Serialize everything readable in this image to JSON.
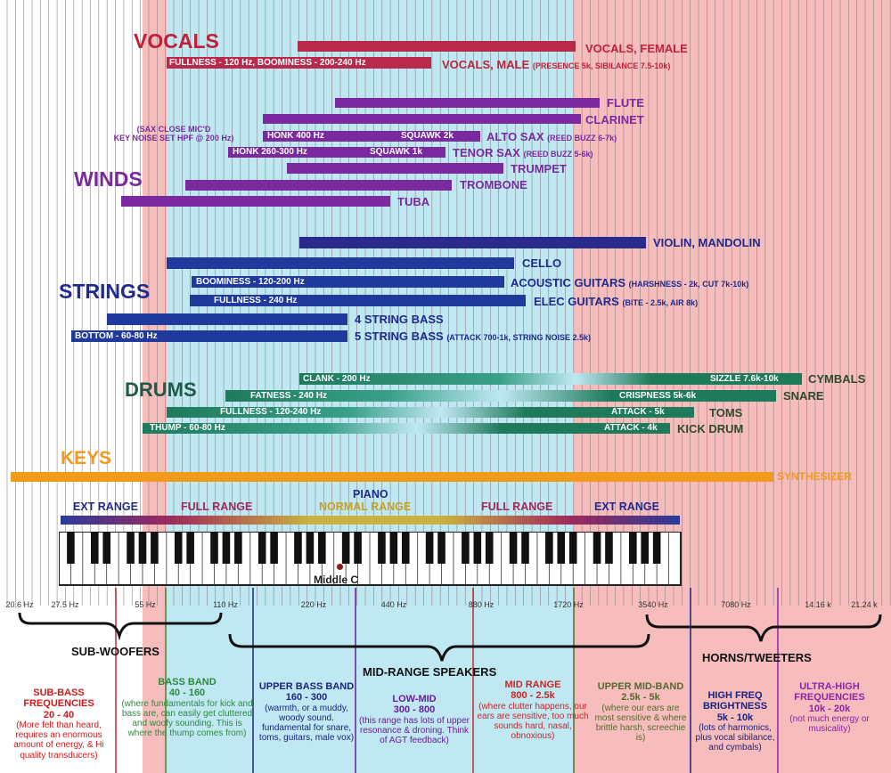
{
  "sections": {
    "vocals": "VOCALS",
    "winds": "WINDS",
    "strings": "STRINGS",
    "drums": "DRUMS",
    "keys": "KEYS"
  },
  "instruments": {
    "vocals_female": "VOCALS, FEMALE",
    "vocals_male": "VOCALS, MALE",
    "vocals_male_note": "(PRESENCE 5k, SIBILANCE 7.5-10k)",
    "vocals_male_bar": "FULLNESS - 120 Hz, BOOMINESS - 200-240 Hz",
    "flute": "FLUTE",
    "clarinet": "CLARINET",
    "sax_note_1": "(SAX CLOSE MIC'D",
    "sax_note_2": "KEY NOISE SET HPF @ 200 Hz)",
    "alto_sax_bar_1": "HONK 400 Hz",
    "alto_sax_bar_2": "SQUAWK  2k",
    "alto_sax": "ALTO SAX",
    "alto_sax_note": "(REED BUZZ 6-7k)",
    "tenor_sax_bar_1": "HONK 260-300 Hz",
    "tenor_sax_bar_2": "SQUAWK  1k",
    "tenor_sax": "TENOR SAX",
    "tenor_sax_note": "(REED BUZZ 5-6k)",
    "trumpet": "TRUMPET",
    "trombone": "TROMBONE",
    "tuba": "TUBA",
    "violin": "VIOLIN, MANDOLIN",
    "cello": "CELLO",
    "acoustic_bar": "BOOMINESS - 120-200 Hz",
    "acoustic": "ACOUSTIC GUITARS",
    "acoustic_note": "(HARSHNESS - 2k, CUT 7k-10k)",
    "elec_bar": "FULLNESS - 240 Hz",
    "elec": "ELEC GUITARS",
    "elec_note": "(BITE - 2.5k, AIR 8k)",
    "bass4": "4 STRING BASS",
    "bass5_bar": "BOTTOM - 60-80 Hz",
    "bass5": "5 STRING BASS",
    "bass5_note": "(ATTACK 700-1k, STRING NOISE 2.5k)",
    "cymbals_bar_1": "CLANK - 200 Hz",
    "cymbals_bar_2": "SIZZLE 7.6k-10k",
    "cymbals": "CYMBALS",
    "snare_bar_1": "FATNESS - 240 Hz",
    "snare_bar_2": "CRISPNESS 5k-6k",
    "snare": "SNARE",
    "toms_bar_1": "FULLNESS - 120-240 Hz",
    "toms_bar_2": "ATTACK - 5k",
    "toms": "TOMS",
    "kick_bar_1": "THUMP - 60-80 Hz",
    "kick_bar_2": "ATTACK - 4k",
    "kick": "KICK DRUM",
    "synth": "SYNTHESIZER"
  },
  "piano": {
    "title": "PIANO",
    "ext_left": "EXT RANGE",
    "full_left": "FULL RANGE",
    "normal": "NORMAL RANGE",
    "full_right": "FULL RANGE",
    "ext_right": "EXT RANGE",
    "middle_c": "Middle C"
  },
  "frequency_ticks": [
    "20.6 Hz",
    "27.5 Hz",
    "55 Hz",
    "110 Hz",
    "220 Hz",
    "440 Hz",
    "880 Hz",
    "1720 Hz",
    "3540 Hz",
    "7080 Hz",
    "14.16 k",
    "21.24 k"
  ],
  "speakers": {
    "subwoofers": "SUB-WOOFERS",
    "midrange": "MID-RANGE SPEAKERS",
    "tweeters": "HORNS/TWEETERS"
  },
  "zones": [
    {
      "title": "SUB-BASS FREQUENCIES",
      "range": "20 - 40",
      "desc": "(More felt than heard, requires an enormous amount of energy, & Hi quality transducers)",
      "color": "#d01818"
    },
    {
      "title": "BASS BAND",
      "range": "40 - 160",
      "desc": "(where fundamentals for kick and bass are, can easily get cluttered and woofy sounding. This is where the thump comes from)",
      "color": "#2e8b3e"
    },
    {
      "title": "UPPER BASS BAND",
      "range": "160 - 300",
      "desc": "(warmth, or a muddy, woody sound. fundamental for snare, toms, guitars, male vox)",
      "color": "#1a237e"
    },
    {
      "title": "LOW-MID",
      "range": "300 - 800",
      "desc": "(this range has lots of upper resonance & droning. Think of AGT feedback)",
      "color": "#6a1b9a"
    },
    {
      "title": "MID RANGE",
      "range": "800 - 2.5k",
      "desc": "(where clutter happens, our ears are sensitive, too much sounds hard, nasal, obnoxious)",
      "color": "#c62828"
    },
    {
      "title": "UPPER MID-BAND",
      "range": "2.5k - 5k",
      "desc": "(where our ears are most sensitive & where brittle harsh, screechie is)",
      "color": "#556b2f"
    },
    {
      "title": "HIGH FREQ BRIGHTNESS",
      "range": "5k - 10k",
      "desc": "(lots of harmonics, plus vocal sibilance, and cymbals)",
      "color": "#1a237e"
    },
    {
      "title": "ULTRA-HIGH FREQUENCIES",
      "range": "10k - 20k",
      "desc": "(not much energy or musicality)",
      "color": "#8e24aa"
    }
  ],
  "colors": {
    "vocals": "#b8294a",
    "winds": "#7a2a9e",
    "strings": "#1f2a8c",
    "drums": "#1f7a5c",
    "keys": "#f29a1a",
    "bass_zone": "#bfe8f2",
    "mid_zone": "#bfe8f2",
    "side_zone": "#f7bcbc"
  }
}
